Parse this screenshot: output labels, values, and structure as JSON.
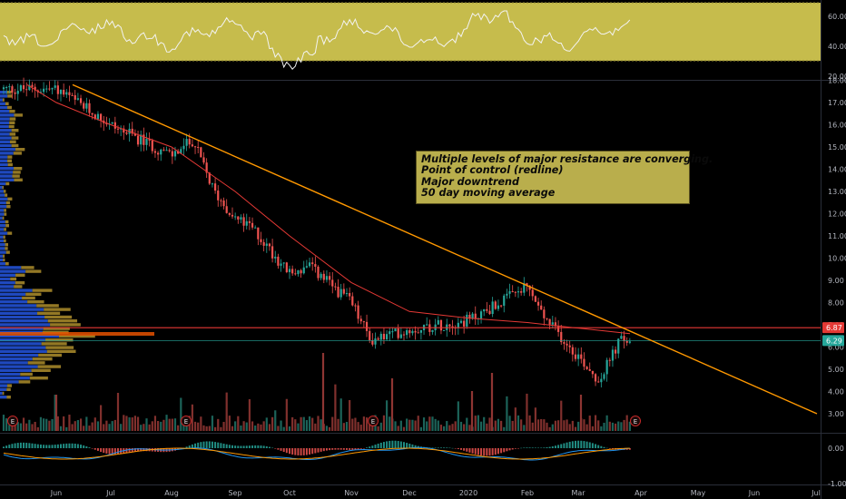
{
  "chart_data": {
    "type": "candlestick",
    "price_axis": {
      "ticks": [
        "18.00",
        "17.00",
        "16.00",
        "15.00",
        "14.00",
        "13.00",
        "12.00",
        "11.00",
        "10.00",
        "9.00",
        "8.00",
        "7.00",
        "6.00",
        "5.00",
        "4.00",
        "3.00"
      ]
    },
    "time_axis": {
      "ticks": [
        "Jun",
        "Jul",
        "Aug",
        "Sep",
        "Oct",
        "Nov",
        "Dec",
        "2020",
        "Feb",
        "Mar",
        "Apr",
        "May",
        "Jun",
        "Jul"
      ]
    },
    "last_price_labels": [
      {
        "text": "6.87",
        "value": 6.87,
        "color": "#e53935"
      },
      {
        "text": "6.29",
        "value": 6.29,
        "color": "#26a69a"
      }
    ],
    "point_of_control": 6.87,
    "trendline": {
      "start": {
        "date": "Jun",
        "value": 17.8
      },
      "end": {
        "date": "Jul",
        "value": 3.0
      },
      "color": "#ff9800"
    },
    "annotation": [
      "Multiple levels of major resistance are converging.",
      "Point of control (redline)",
      "Major downtrend",
      "50 day moving average"
    ],
    "earnings_markers": [
      "E",
      "E",
      "E",
      "E"
    ],
    "rsi_panel": {
      "ticks": [
        "60.00",
        "40.00",
        "20.00"
      ],
      "band_color": "#c6bc4c"
    },
    "macd_panel": {
      "ticks": [
        "0.00",
        "-1.00"
      ]
    },
    "price_path": [
      [
        "Jun",
        17.6
      ],
      [
        "Jul",
        16.0
      ],
      [
        "Aug",
        14.6
      ],
      [
        "Aug",
        15.3
      ],
      [
        "Aug",
        13.0
      ],
      [
        "Sep",
        11.8
      ],
      [
        "Sep",
        11.3
      ],
      [
        "Oct",
        9.3
      ],
      [
        "Oct",
        9.6
      ],
      [
        "Nov",
        8.0
      ],
      [
        "Nov",
        6.3
      ],
      [
        "Dec",
        6.8
      ],
      [
        "2020",
        7.2
      ],
      [
        "Feb",
        8.7
      ],
      [
        "Feb",
        7.3
      ],
      [
        "Mar",
        5.6
      ],
      [
        "Mar",
        4.5
      ],
      [
        "Mar",
        6.3
      ]
    ],
    "moving_average": [
      [
        "Jun",
        17.0
      ],
      [
        "Jul",
        16.0
      ],
      [
        "Aug",
        15.0
      ],
      [
        "Sep",
        13.0
      ],
      [
        "Oct",
        11.0
      ],
      [
        "Nov",
        8.9
      ],
      [
        "Dec",
        7.6
      ],
      [
        "2020",
        7.3
      ],
      [
        "Feb",
        7.1
      ],
      [
        "Mar",
        6.85
      ]
    ],
    "colors": {
      "up": "#26a69a",
      "down": "#ef5350",
      "ma": "#e53935",
      "rsi_line": "#f3f3f3",
      "macd_line": "#2196f3",
      "signal_line": "#ff9800"
    }
  }
}
